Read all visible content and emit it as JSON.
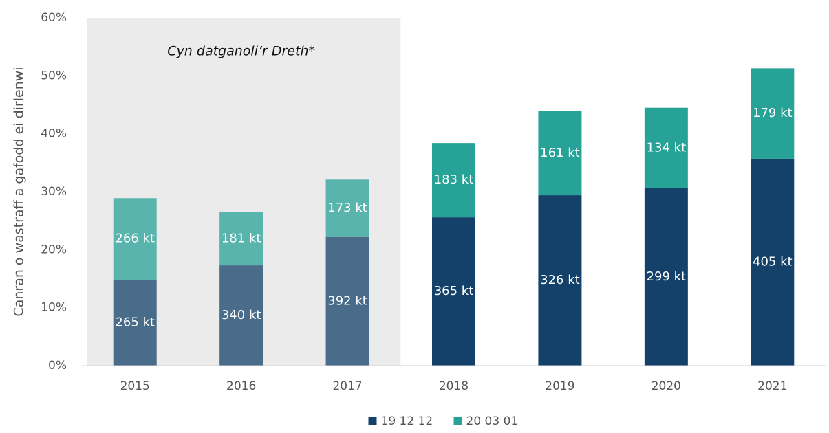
{
  "chart_data": {
    "type": "stacked_bar",
    "y_axis_label": "Canran o wastraff a gafodd ei dirlenwi",
    "categories": [
      "2015",
      "2016",
      "2017",
      "2018",
      "2019",
      "2020",
      "2021"
    ],
    "series": [
      {
        "name": "19 12 12",
        "color": "#134169",
        "values": [
          14.8,
          17.3,
          22.2,
          25.6,
          29.4,
          30.6,
          35.7
        ],
        "value_labels": [
          "265 kt",
          "340 kt",
          "392 kt",
          "365 kt",
          "326 kt",
          "299 kt",
          "405 kt"
        ]
      },
      {
        "name": "20 03 01",
        "color": "#27a297",
        "values": [
          14.1,
          9.2,
          9.9,
          12.8,
          14.5,
          13.9,
          15.6
        ],
        "value_labels": [
          "266 kt",
          "181 kt",
          "173 kt",
          "183 kt",
          "161 kt",
          "134 kt",
          "179 kt"
        ]
      }
    ],
    "annotation": {
      "text": "Cyn datganoli’r Dreth*",
      "categories": [
        "2015",
        "2016",
        "2017"
      ]
    },
    "ylim": [
      0,
      60
    ],
    "yticks": [
      {
        "value": 0,
        "label": "0%"
      },
      {
        "value": 10,
        "label": "10%"
      },
      {
        "value": 20,
        "label": "20%"
      },
      {
        "value": 30,
        "label": "30%"
      },
      {
        "value": 40,
        "label": "40%"
      },
      {
        "value": 50,
        "label": "50%"
      },
      {
        "value": 60,
        "label": "60%"
      }
    ],
    "grid": false,
    "legend": "bottom"
  }
}
